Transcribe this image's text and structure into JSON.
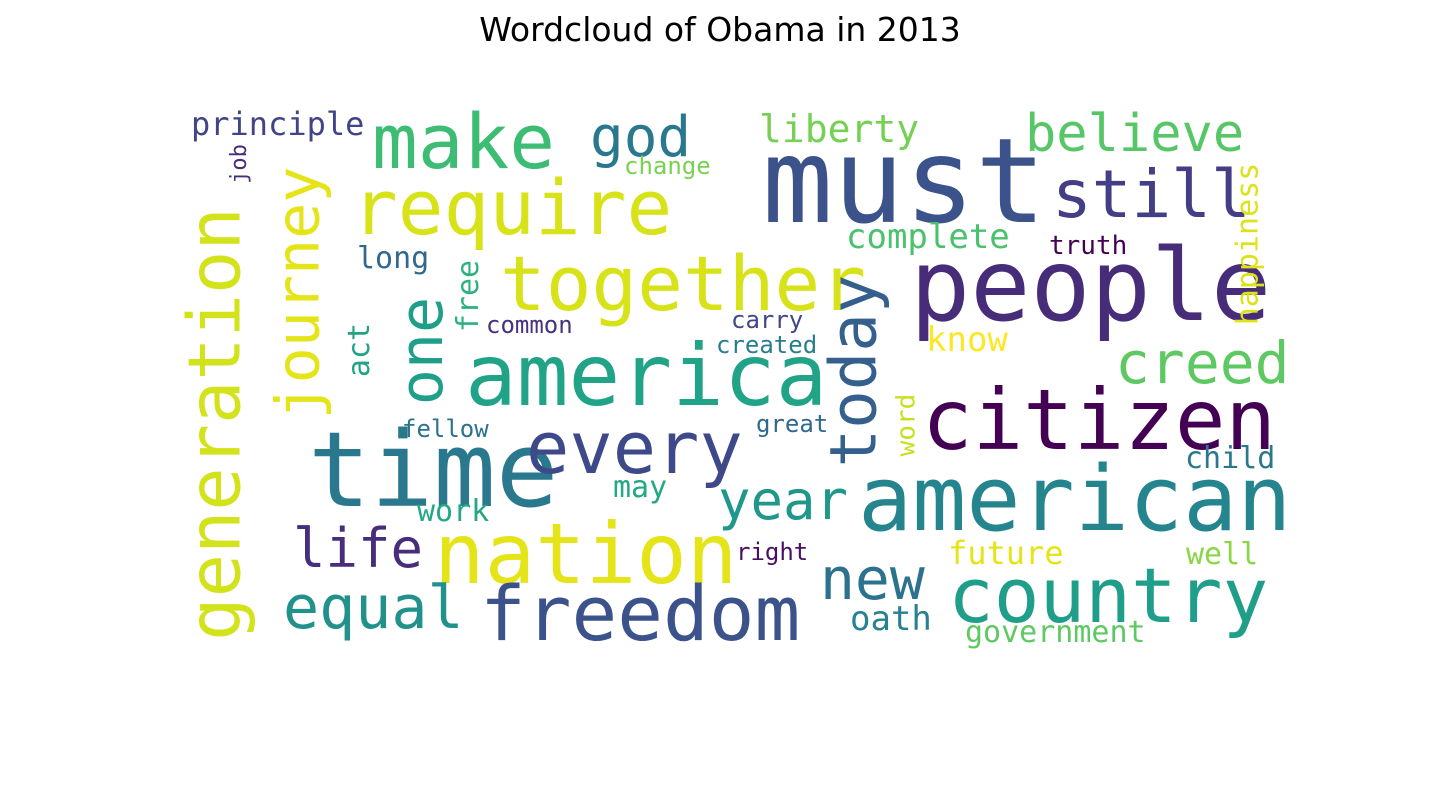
{
  "title": "Wordcloud of Obama in 2013",
  "words": [
    {
      "text": "must",
      "color": "#3b528b"
    },
    {
      "text": "people",
      "color": "#472c7a"
    },
    {
      "text": "american",
      "color": "#25858e"
    },
    {
      "text": "time",
      "color": "#2a788e"
    },
    {
      "text": "america",
      "color": "#20a386"
    },
    {
      "text": "citizen",
      "color": "#440154"
    },
    {
      "text": "nation",
      "color": "#e5e419"
    },
    {
      "text": "together",
      "color": "#d8e219"
    },
    {
      "text": "require",
      "color": "#d8e219"
    },
    {
      "text": "make",
      "color": "#3dbc74"
    },
    {
      "text": "freedom",
      "color": "#3b528b"
    },
    {
      "text": "country",
      "color": "#1f9e89"
    },
    {
      "text": "generation",
      "color": "#d2e21b"
    },
    {
      "text": "every",
      "color": "#3e4989"
    },
    {
      "text": "today",
      "color": "#355f8d"
    },
    {
      "text": "journey",
      "color": "#e5e419"
    },
    {
      "text": "still",
      "color": "#433e85"
    },
    {
      "text": "one",
      "color": "#1f9e89"
    },
    {
      "text": "creed",
      "color": "#5ec962"
    },
    {
      "text": "new",
      "color": "#2c728e"
    },
    {
      "text": "year",
      "color": "#1f978b"
    },
    {
      "text": "equal",
      "color": "#21918c"
    },
    {
      "text": "believe",
      "color": "#56c667"
    },
    {
      "text": "life",
      "color": "#472d7b"
    },
    {
      "text": "god",
      "color": "#2a788e"
    },
    {
      "text": "liberty",
      "color": "#75d054"
    },
    {
      "text": "complete",
      "color": "#4ac16d"
    },
    {
      "text": "happiness",
      "color": "#dde318"
    },
    {
      "text": "principle",
      "color": "#414487"
    },
    {
      "text": "long",
      "color": "#31688e"
    },
    {
      "text": "free",
      "color": "#2db27d"
    },
    {
      "text": "act",
      "color": "#20a386"
    },
    {
      "text": "common",
      "color": "#46327e"
    },
    {
      "text": "carry",
      "color": "#3f4788"
    },
    {
      "text": "created",
      "color": "#287d8e"
    },
    {
      "text": "know",
      "color": "#fde725"
    },
    {
      "text": "truth",
      "color": "#440154"
    },
    {
      "text": "change",
      "color": "#7ad151"
    },
    {
      "text": "job",
      "color": "#472d7b"
    },
    {
      "text": "fellow",
      "color": "#2c728e"
    },
    {
      "text": "great",
      "color": "#31688e"
    },
    {
      "text": "word",
      "color": "#c8e020"
    },
    {
      "text": "may",
      "color": "#22a884"
    },
    {
      "text": "work",
      "color": "#22a884"
    },
    {
      "text": "child",
      "color": "#2a788e"
    },
    {
      "text": "right",
      "color": "#471063"
    },
    {
      "text": "future",
      "color": "#e5e419"
    },
    {
      "text": "well",
      "color": "#8bd646"
    },
    {
      "text": "oath",
      "color": "#26828e"
    },
    {
      "text": "government",
      "color": "#5ec962"
    }
  ]
}
